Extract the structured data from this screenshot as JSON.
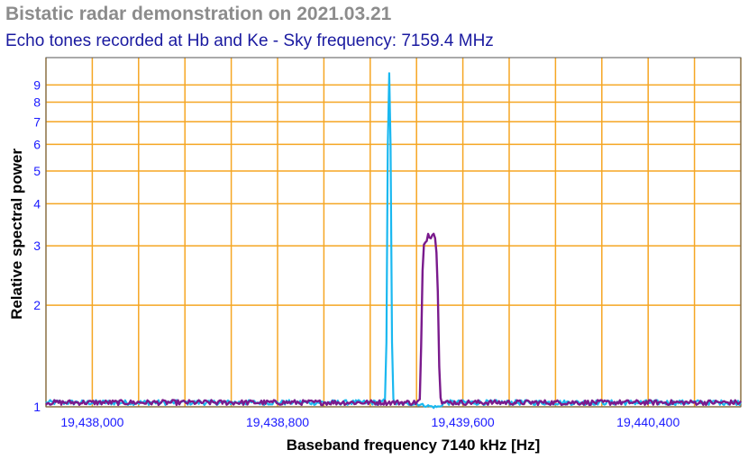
{
  "chart_data": {
    "type": "line",
    "title": "Bistatic radar demonstration on 2021.03.21",
    "subtitle": "Echo tones recorded at Hb and Ke - Sky frequency: 7159.4 MHz",
    "xlabel": "Baseband frequency 7140 kHz [Hz]",
    "ylabel": "Relative spectral power",
    "x_range": [
      19437800,
      19440800
    ],
    "x_scale": "linear",
    "y_scale": "log",
    "y_range": [
      1,
      10
    ],
    "x_ticks": [
      19438000,
      19438800,
      19439600,
      19440400
    ],
    "x_tick_labels": [
      "19,438,000",
      "19,438,800",
      "19,439,600",
      "19,440,400"
    ],
    "y_ticks": [
      1,
      2,
      3,
      4,
      5,
      6,
      7,
      8,
      9
    ],
    "y_tick_labels": [
      "1",
      "2",
      "3",
      "4",
      "5",
      "6",
      "7",
      "8",
      "9"
    ],
    "grid": true,
    "legend": "none",
    "colors": {
      "grid": "#f5a623",
      "series1": "#1ab8f0",
      "series2": "#7a1a8c",
      "tick_text": "#1a1aff"
    },
    "series": [
      {
        "color": "#1ab8f0",
        "baseline": 1.03,
        "points": [
          [
            19439250,
            1.03
          ],
          [
            19439268,
            1.06
          ],
          [
            19439272,
            2.0
          ],
          [
            19439276,
            6.0
          ],
          [
            19439280,
            9.9
          ],
          [
            19439284,
            9.9
          ],
          [
            19439288,
            6.0
          ],
          [
            19439292,
            2.0
          ],
          [
            19439296,
            1.06
          ],
          [
            19439310,
            1.02
          ],
          [
            19439400,
            1.02
          ],
          [
            19439470,
            1.0
          ],
          [
            19439500,
            1.0
          ],
          [
            19439520,
            1.03
          ]
        ]
      },
      {
        "color": "#7a1a8c",
        "baseline": 1.03,
        "points": [
          [
            19439400,
            1.03
          ],
          [
            19439415,
            1.05
          ],
          [
            19439420,
            1.5
          ],
          [
            19439425,
            2.4
          ],
          [
            19439430,
            2.95
          ],
          [
            19439440,
            3.1
          ],
          [
            19439450,
            3.25
          ],
          [
            19439460,
            3.2
          ],
          [
            19439470,
            3.3
          ],
          [
            19439480,
            3.2
          ],
          [
            19439490,
            2.6
          ],
          [
            19439495,
            1.7
          ],
          [
            19439500,
            1.1
          ],
          [
            19439510,
            1.03
          ]
        ]
      }
    ]
  }
}
